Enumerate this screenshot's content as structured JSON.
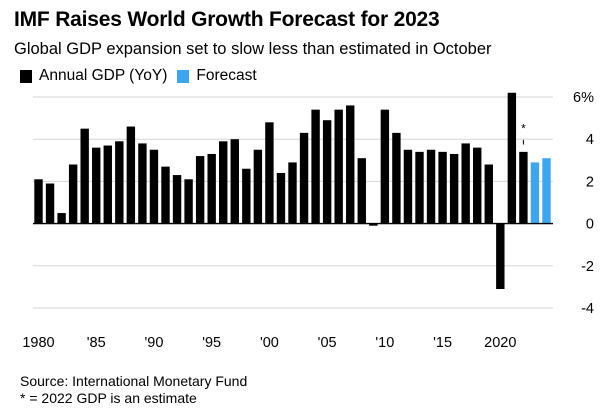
{
  "chart_data": {
    "type": "bar",
    "title": "IMF Raises World Growth Forecast for 2023",
    "subtitle": "Global GDP expansion set to slow less than estimated in October",
    "colors": {
      "actual": "#000000",
      "forecast": "#3ea6f0"
    },
    "series": [
      {
        "name": "Annual GDP (YoY)",
        "x": [
          1980,
          1981,
          1982,
          1983,
          1984,
          1985,
          1986,
          1987,
          1988,
          1989,
          1990,
          1991,
          1992,
          1993,
          1994,
          1995,
          1996,
          1997,
          1998,
          1999,
          2000,
          2001,
          2002,
          2003,
          2004,
          2005,
          2006,
          2007,
          2008,
          2009,
          2010,
          2011,
          2012,
          2013,
          2014,
          2015,
          2016,
          2017,
          2018,
          2019,
          2020,
          2021,
          2022
        ],
        "values": [
          2.1,
          1.9,
          0.5,
          2.8,
          4.5,
          3.6,
          3.7,
          3.9,
          4.6,
          3.8,
          3.5,
          2.7,
          2.3,
          2.1,
          3.2,
          3.3,
          3.9,
          4.0,
          2.6,
          3.5,
          4.8,
          2.4,
          2.9,
          4.3,
          5.4,
          4.9,
          5.4,
          5.6,
          3.1,
          -0.1,
          5.4,
          4.3,
          3.5,
          3.4,
          3.5,
          3.4,
          3.3,
          3.8,
          3.6,
          2.8,
          -3.1,
          6.2,
          3.4
        ]
      },
      {
        "name": "Forecast",
        "x": [
          2023,
          2024
        ],
        "values": [
          2.9,
          3.1
        ]
      }
    ],
    "x_ticks": [
      1980,
      1985,
      1990,
      1995,
      2000,
      2005,
      2010,
      2015,
      2020
    ],
    "x_tick_labels": [
      "1980",
      "'85",
      "'90",
      "'95",
      "'00",
      "'05",
      "'10",
      "'15",
      "2020"
    ],
    "y_ticks": [
      6,
      4,
      2,
      0,
      -2,
      -4
    ],
    "y_tick_labels": [
      "6%",
      "4",
      "2",
      "0",
      "-2",
      "-4"
    ],
    "ylim": [
      -4,
      6
    ],
    "xlabel": "",
    "ylabel": "",
    "grid": true,
    "legend_position": "top-left",
    "annotation": {
      "year": 2022,
      "mark": "*"
    }
  },
  "source": {
    "line1": "Source: International Monetary Fund",
    "line2": "* = 2022 GDP is an estimate"
  }
}
